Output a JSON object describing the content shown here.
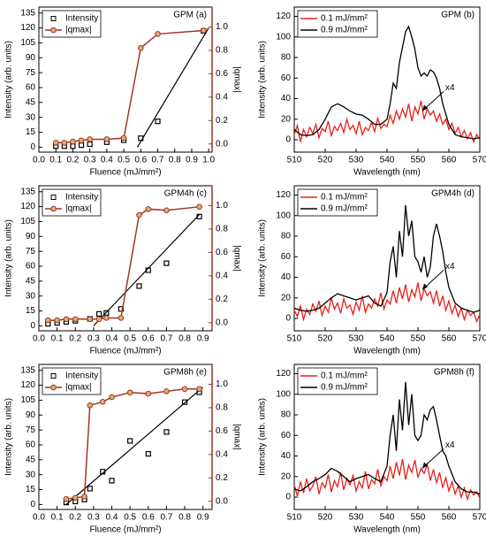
{
  "chart_data": [
    {
      "type": "scatter",
      "title": "GPM (a)",
      "xlabel": "Fluence (mJ/mm²)",
      "ylabel": "Intensity (arb. units)",
      "y2label": "|qmax|",
      "xlim": [
        0,
        1.02
      ],
      "xticks": [
        {
          "value": 0,
          "label": "0.0"
        },
        0.1,
        0.2,
        0.3,
        0.4,
        0.5,
        0.6,
        0.7,
        0.8,
        0.9,
        {
          "value": 1,
          "label": "1.0"
        }
      ],
      "ylim": [
        -5,
        141
      ],
      "yticks": [
        0,
        15,
        30,
        45,
        60,
        75,
        90,
        105,
        120,
        135
      ],
      "y2lim": [
        -0.07,
        1.17
      ],
      "y2ticks": [
        {
          "value": 0,
          "label": "0.0"
        },
        0.2,
        0.4,
        0.6,
        0.8,
        {
          "value": 1,
          "label": "1.0"
        }
      ],
      "legend": "upper left",
      "series": [
        {
          "name": "Intensity",
          "color": "#000000",
          "marker": "square",
          "x": [
            0.1,
            0.15,
            0.2,
            0.25,
            0.3,
            0.4,
            0.5,
            0.6,
            0.7,
            0.97
          ],
          "values": [
            1,
            1,
            1,
            2,
            3,
            5,
            7,
            9,
            26,
            117
          ]
        },
        {
          "name": "|qmax|",
          "color": "#a3322b",
          "marker": "circle",
          "axis": "y2",
          "x": [
            0.1,
            0.15,
            0.2,
            0.25,
            0.3,
            0.4,
            0.5,
            0.6,
            0.7,
            0.97
          ],
          "values": [
            0.01,
            0.01,
            0.02,
            0.03,
            0.04,
            0.04,
            0.05,
            0.82,
            0.94,
            0.97
          ]
        }
      ],
      "fit": {
        "color": "#000000",
        "x": [
          0.58,
          1.0
        ],
        "values": [
          0,
          120
        ]
      }
    },
    {
      "type": "line",
      "title": "GPM (b)",
      "xlabel": "Wavelength (nm)",
      "ylabel": "Intensity (arb. units)",
      "annotation": "x4",
      "xlim": [
        510,
        570
      ],
      "xticks": [
        510,
        520,
        530,
        540,
        550,
        560,
        570
      ],
      "ylim": [
        -12,
        129
      ],
      "yticks": [
        0,
        20,
        40,
        60,
        80,
        100,
        120
      ],
      "legend": "upper left",
      "series": [
        {
          "name": "0.1 mJ/mm²",
          "color": "#e8201a",
          "x": [
            510,
            511,
            512,
            513,
            514,
            515,
            516,
            517,
            518,
            519,
            520,
            521,
            522,
            523,
            524,
            525,
            526,
            527,
            528,
            529,
            530,
            531,
            532,
            533,
            534,
            535,
            536,
            537,
            538,
            539,
            540,
            541,
            542,
            543,
            544,
            545,
            546,
            547,
            548,
            549,
            550,
            551,
            552,
            553,
            554,
            555,
            556,
            557,
            558,
            559,
            560,
            561,
            562,
            563,
            564,
            565,
            566,
            567,
            568,
            569,
            570
          ],
          "values": [
            5,
            14,
            -2,
            10,
            3,
            12,
            6,
            15,
            2,
            11,
            8,
            18,
            4,
            13,
            9,
            16,
            7,
            20,
            10,
            14,
            6,
            18,
            5,
            12,
            9,
            17,
            8,
            21,
            11,
            15,
            13,
            24,
            16,
            28,
            20,
            30,
            22,
            35,
            18,
            32,
            25,
            38,
            20,
            30,
            24,
            28,
            18,
            25,
            15,
            20,
            10,
            16,
            6,
            12,
            3,
            9,
            1,
            7,
            -2,
            5,
            0
          ]
        },
        {
          "name": "0.9 mJ/mm²",
          "color": "#000000",
          "x": [
            510,
            512,
            514,
            516,
            518,
            520,
            522,
            524,
            526,
            528,
            530,
            532,
            534,
            536,
            538,
            540,
            541,
            542,
            543,
            544,
            545,
            546,
            547,
            548,
            549,
            550,
            551,
            552,
            553,
            554,
            555,
            556,
            557,
            558,
            560,
            562,
            564,
            566,
            568,
            570
          ],
          "values": [
            10,
            5,
            4,
            5,
            10,
            20,
            32,
            35,
            32,
            28,
            25,
            24,
            20,
            15,
            15,
            20,
            35,
            55,
            50,
            75,
            90,
            105,
            110,
            100,
            88,
            70,
            62,
            65,
            62,
            68,
            66,
            60,
            50,
            35,
            15,
            5,
            3,
            2,
            1,
            2
          ]
        }
      ]
    },
    {
      "type": "scatter",
      "title": "GPM4h (c)",
      "xlabel": "Fluence (mJ/mm²)",
      "ylabel": "Intensity (arb. units)",
      "y2label": "|qmax|",
      "xlim": [
        0,
        0.95
      ],
      "xticks": [
        {
          "value": 0,
          "label": "0.0"
        },
        0.1,
        0.2,
        0.3,
        0.4,
        0.5,
        0.6,
        0.7,
        0.8,
        0.9
      ],
      "ylim": [
        -5,
        141
      ],
      "yticks": [
        0,
        15,
        30,
        45,
        60,
        75,
        90,
        105,
        120,
        135
      ],
      "y2lim": [
        -0.07,
        1.17
      ],
      "y2ticks": [
        {
          "value": 0,
          "label": "0.0"
        },
        0.2,
        0.4,
        0.6,
        0.8,
        {
          "value": 1,
          "label": "1.0"
        }
      ],
      "legend": "upper left",
      "series": [
        {
          "name": "Intensity",
          "color": "#000000",
          "marker": "square",
          "x": [
            0.05,
            0.1,
            0.15,
            0.2,
            0.28,
            0.33,
            0.37,
            0.45,
            0.55,
            0.6,
            0.7,
            0.88
          ],
          "values": [
            2,
            3,
            4,
            5,
            7,
            12,
            13,
            17,
            40,
            56,
            63,
            110
          ]
        },
        {
          "name": "|qmax|",
          "color": "#a3322b",
          "marker": "circle",
          "axis": "y2",
          "x": [
            0.05,
            0.1,
            0.15,
            0.2,
            0.28,
            0.33,
            0.37,
            0.45,
            0.55,
            0.6,
            0.7,
            0.88
          ],
          "values": [
            0.02,
            0.02,
            0.03,
            0.03,
            0.03,
            0.03,
            0.04,
            0.04,
            0.92,
            0.97,
            0.96,
            0.99
          ]
        }
      ],
      "fit": {
        "color": "#000000",
        "x": [
          0.3,
          0.88
        ],
        "values": [
          0,
          112
        ]
      }
    },
    {
      "type": "line",
      "title": "GPM4h (d)",
      "xlabel": "Wavelength (nm)",
      "ylabel": "Intensity (arb. units)",
      "annotation": "x4",
      "xlim": [
        510,
        570
      ],
      "xticks": [
        510,
        520,
        530,
        540,
        550,
        560,
        570
      ],
      "ylim": [
        -12,
        129
      ],
      "yticks": [
        0,
        20,
        40,
        60,
        80,
        100,
        120
      ],
      "legend": "upper left",
      "series": [
        {
          "name": "0.1 mJ/mm²",
          "color": "#e8201a",
          "x": [
            510,
            511,
            512,
            513,
            514,
            515,
            516,
            517,
            518,
            519,
            520,
            521,
            522,
            523,
            524,
            525,
            526,
            527,
            528,
            529,
            530,
            531,
            532,
            533,
            534,
            535,
            536,
            537,
            538,
            539,
            540,
            541,
            542,
            543,
            544,
            545,
            546,
            547,
            548,
            549,
            550,
            551,
            552,
            553,
            554,
            555,
            556,
            557,
            558,
            559,
            560,
            561,
            562,
            563,
            564,
            565,
            566,
            567,
            568,
            569,
            570
          ],
          "values": [
            8,
            2,
            12,
            -1,
            9,
            4,
            14,
            7,
            17,
            3,
            12,
            6,
            20,
            9,
            15,
            5,
            19,
            10,
            13,
            4,
            16,
            8,
            22,
            6,
            14,
            10,
            19,
            12,
            25,
            9,
            18,
            14,
            27,
            15,
            30,
            19,
            33,
            16,
            28,
            21,
            35,
            17,
            29,
            22,
            26,
            15,
            27,
            12,
            22,
            8,
            17,
            5,
            13,
            2,
            10,
            -1,
            8,
            3,
            6,
            -3,
            4
          ]
        },
        {
          "name": "0.9 mJ/mm²",
          "color": "#000000",
          "x": [
            510,
            512,
            514,
            516,
            518,
            520,
            522,
            524,
            526,
            528,
            530,
            532,
            534,
            536,
            538,
            540,
            541,
            542,
            543,
            544,
            545,
            546,
            547,
            548,
            549,
            550,
            551,
            552,
            553,
            554,
            555,
            556,
            557,
            558,
            559,
            560,
            562,
            564,
            566,
            568,
            570
          ],
          "values": [
            10,
            8,
            7,
            8,
            10,
            15,
            20,
            24,
            22,
            20,
            18,
            20,
            22,
            15,
            12,
            25,
            55,
            70,
            40,
            85,
            60,
            110,
            80,
            95,
            60,
            55,
            45,
            60,
            40,
            50,
            80,
            92,
            80,
            65,
            45,
            30,
            15,
            10,
            8,
            6,
            8
          ]
        }
      ]
    },
    {
      "type": "scatter",
      "title": "GPM8h (e)",
      "xlabel": "Fluence (mJ/mm²)",
      "ylabel": "Intensity (arb. units)",
      "y2label": "|qmax|",
      "xlim": [
        0,
        0.95
      ],
      "xticks": [
        {
          "value": 0,
          "label": "0.0"
        },
        0.1,
        0.2,
        0.3,
        0.4,
        0.5,
        0.6,
        0.7,
        0.8,
        0.9
      ],
      "ylim": [
        -5,
        141
      ],
      "yticks": [
        0,
        15,
        30,
        45,
        60,
        75,
        90,
        105,
        120,
        135
      ],
      "y2lim": [
        -0.07,
        1.17
      ],
      "y2ticks": [
        {
          "value": 0,
          "label": "0.0"
        },
        0.2,
        0.4,
        0.6,
        0.8,
        {
          "value": 1,
          "label": "1.0"
        }
      ],
      "legend": "upper left",
      "series": [
        {
          "name": "Intensity",
          "color": "#000000",
          "marker": "square",
          "x": [
            0.15,
            0.2,
            0.25,
            0.28,
            0.35,
            0.4,
            0.5,
            0.6,
            0.7,
            0.8,
            0.88
          ],
          "values": [
            2,
            3,
            5,
            16,
            33,
            24,
            64,
            51,
            73,
            103,
            113
          ]
        },
        {
          "name": "|qmax|",
          "color": "#a3322b",
          "marker": "circle",
          "axis": "y2",
          "x": [
            0.15,
            0.2,
            0.25,
            0.28,
            0.35,
            0.4,
            0.5,
            0.6,
            0.7,
            0.8,
            0.88
          ],
          "values": [
            0.02,
            0.03,
            0.04,
            0.82,
            0.85,
            0.89,
            0.93,
            0.92,
            0.94,
            0.96,
            0.96
          ]
        }
      ],
      "fit": {
        "color": "#000000",
        "x": [
          0.15,
          0.9
        ],
        "values": [
          0,
          118
        ]
      }
    },
    {
      "type": "line",
      "title": "GPM8h (f)",
      "xlabel": "Wavelength (nm)",
      "ylabel": "Intensity (arb. units)",
      "annotation": "x4",
      "xlim": [
        510,
        570
      ],
      "xticks": [
        510,
        520,
        530,
        540,
        550,
        560,
        570
      ],
      "ylim": [
        -12,
        129
      ],
      "yticks": [
        0,
        20,
        40,
        60,
        80,
        100,
        120
      ],
      "legend": "upper left",
      "series": [
        {
          "name": "0.1 mJ/mm²",
          "color": "#e8201a",
          "x": [
            510,
            511,
            512,
            513,
            514,
            515,
            516,
            517,
            518,
            519,
            520,
            521,
            522,
            523,
            524,
            525,
            526,
            527,
            528,
            529,
            530,
            531,
            532,
            533,
            534,
            535,
            536,
            537,
            538,
            539,
            540,
            541,
            542,
            543,
            544,
            545,
            546,
            547,
            548,
            549,
            550,
            551,
            552,
            553,
            554,
            555,
            556,
            557,
            558,
            559,
            560,
            561,
            562,
            563,
            564,
            565,
            566,
            567,
            568,
            569,
            570
          ],
          "values": [
            12,
            1,
            15,
            4,
            18,
            6,
            11,
            20,
            3,
            14,
            9,
            22,
            5,
            16,
            10,
            24,
            7,
            18,
            12,
            21,
            6,
            15,
            9,
            25,
            8,
            17,
            13,
            27,
            11,
            20,
            16,
            30,
            18,
            34,
            21,
            37,
            17,
            31,
            24,
            36,
            19,
            28,
            23,
            32,
            16,
            27,
            14,
            24,
            9,
            19,
            6,
            15,
            3,
            11,
            0,
            9,
            -2,
            7,
            2,
            5,
            -1
          ]
        },
        {
          "name": "0.9 mJ/mm²",
          "color": "#000000",
          "x": [
            510,
            512,
            514,
            516,
            518,
            520,
            522,
            524,
            526,
            528,
            530,
            532,
            534,
            536,
            538,
            540,
            541,
            542,
            543,
            544,
            545,
            546,
            547,
            548,
            549,
            550,
            551,
            552,
            553,
            554,
            555,
            556,
            557,
            558,
            559,
            560,
            562,
            564,
            566,
            568,
            570
          ],
          "values": [
            8,
            6,
            10,
            15,
            18,
            22,
            28,
            25,
            20,
            15,
            18,
            20,
            22,
            18,
            15,
            30,
            60,
            80,
            45,
            95,
            65,
            112,
            70,
            100,
            60,
            55,
            60,
            80,
            75,
            85,
            88,
            75,
            60,
            45,
            40,
            30,
            15,
            8,
            5,
            5,
            3
          ]
        }
      ]
    }
  ]
}
